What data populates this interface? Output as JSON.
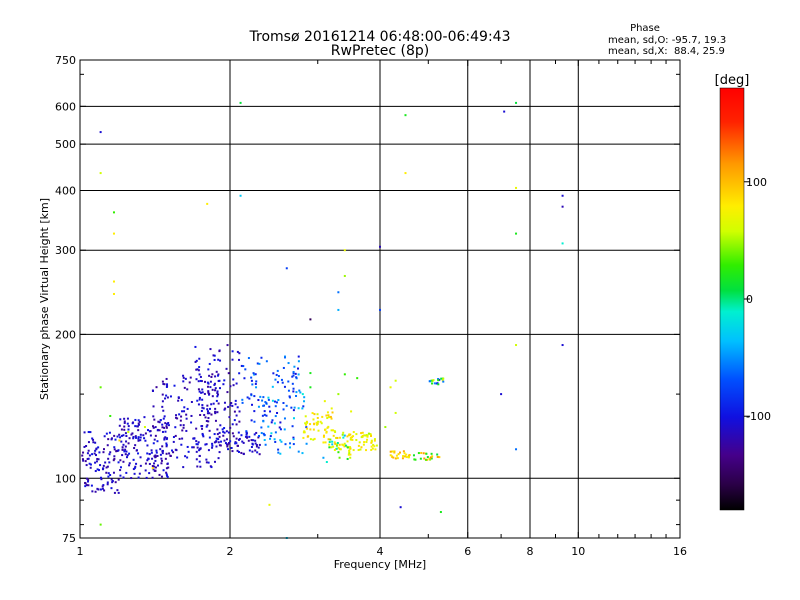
{
  "chart_data": {
    "type": "scatter",
    "title": "Tromsø 20161214 06:48:00-06:49:43",
    "subtitle": "RwPretec (8p)",
    "xlabel": "Frequency [MHz]",
    "ylabel": "Stationary phase Virtual Height [km]",
    "x_scale": "log",
    "y_scale": "log",
    "xlim": [
      1,
      16
    ],
    "ylim": [
      75,
      750
    ],
    "x_ticks": [
      1,
      2,
      4,
      6,
      8,
      10,
      16
    ],
    "y_ticks": [
      75,
      100,
      200,
      300,
      400,
      500,
      600,
      750
    ],
    "x_gridlines": [
      2,
      4,
      6,
      8,
      10
    ],
    "y_gridlines": [
      100,
      200,
      300,
      400,
      500,
      600
    ],
    "grid": true,
    "colorbar": {
      "label": "[deg]",
      "range": [
        -180,
        180
      ],
      "ticks": [
        -100,
        0,
        100
      ]
    },
    "phase_info": {
      "heading": "Phase",
      "line_o": "mean, sd,O: -95.7, 19.3",
      "line_x": "mean, sd,X:  88.4, 25.9"
    },
    "points": [
      [
        1.1,
        530,
        -110
      ],
      [
        1.1,
        435,
        60
      ],
      [
        1.17,
        360,
        30
      ],
      [
        1.17,
        325,
        80
      ],
      [
        1.17,
        258,
        80
      ],
      [
        1.17,
        243,
        80
      ],
      [
        1.8,
        375,
        80
      ],
      [
        2.1,
        610,
        10
      ],
      [
        2.1,
        390,
        -30
      ],
      [
        2.6,
        275,
        -80
      ],
      [
        2.9,
        215,
        -150
      ],
      [
        3.4,
        300,
        70
      ],
      [
        3.4,
        265,
        50
      ],
      [
        3.3,
        245,
        -60
      ],
      [
        3.3,
        225,
        -40
      ],
      [
        4.0,
        305,
        -120
      ],
      [
        4.0,
        225,
        -80
      ],
      [
        4.5,
        575,
        20
      ],
      [
        4.5,
        435,
        80
      ],
      [
        7.1,
        585,
        -110
      ],
      [
        7.5,
        610,
        10
      ],
      [
        7.5,
        405,
        70
      ],
      [
        7.5,
        325,
        20
      ],
      [
        9.3,
        390,
        -110
      ],
      [
        9.3,
        370,
        -120
      ],
      [
        9.3,
        310,
        -10
      ],
      [
        9.3,
        190,
        -110
      ],
      [
        7.5,
        190,
        60
      ],
      [
        7.5,
        115,
        -60
      ],
      [
        7.0,
        150,
        -110
      ],
      [
        5.3,
        85,
        20
      ],
      [
        4.4,
        87,
        -110
      ],
      [
        2.4,
        88,
        70
      ],
      [
        2.6,
        75,
        -30
      ],
      [
        1.1,
        80,
        40
      ],
      [
        4.3,
        160,
        60
      ],
      [
        4.2,
        155,
        70
      ],
      [
        4.3,
        137,
        60
      ],
      [
        4.1,
        128,
        50
      ],
      [
        3.8,
        124,
        50
      ],
      [
        3.5,
        138,
        70
      ],
      [
        3.2,
        140,
        70
      ],
      [
        3.1,
        145,
        70
      ],
      [
        2.8,
        150,
        -10
      ],
      [
        2.9,
        155,
        20
      ],
      [
        3.3,
        150,
        50
      ],
      [
        3.4,
        165,
        30
      ],
      [
        3.6,
        162,
        30
      ],
      [
        2.9,
        166,
        20
      ],
      [
        1.1,
        155,
        40
      ],
      [
        1.15,
        135,
        30
      ],
      [
        1.25,
        125,
        60
      ],
      [
        1.35,
        128,
        60
      ],
      [
        1.2,
        120,
        90
      ],
      [
        1.4,
        105,
        90
      ]
    ],
    "clusters": [
      {
        "x": [
          1.0,
          1.2
        ],
        "y": [
          93,
          125
        ],
        "n": 110,
        "phase": [
          -130,
          -100
        ]
      },
      {
        "x": [
          1.2,
          1.5
        ],
        "y": [
          100,
          135
        ],
        "n": 160,
        "phase": [
          -130,
          -100
        ]
      },
      {
        "x": [
          1.4,
          1.9
        ],
        "y": [
          105,
          165
        ],
        "n": 170,
        "phase": [
          -130,
          -100
        ]
      },
      {
        "x": [
          1.7,
          2.1
        ],
        "y": [
          115,
          190
        ],
        "n": 120,
        "phase": [
          -130,
          -100
        ]
      },
      {
        "x": [
          1.9,
          2.3
        ],
        "y": [
          112,
          125
        ],
        "n": 60,
        "phase": [
          -130,
          -100
        ]
      },
      {
        "x": [
          2.1,
          2.75
        ],
        "y": [
          120,
          180
        ],
        "n": 90,
        "phase": [
          -110,
          -40
        ]
      },
      {
        "x": [
          2.3,
          2.85
        ],
        "y": [
          112,
          165
        ],
        "n": 55,
        "phase": [
          -90,
          -20
        ]
      },
      {
        "x": [
          2.8,
          3.25
        ],
        "y": [
          118,
          138
        ],
        "n": 55,
        "phase": [
          60,
          100
        ]
      },
      {
        "x": [
          3.15,
          3.5
        ],
        "y": [
          112,
          125
        ],
        "n": 35,
        "phase": [
          60,
          100
        ]
      },
      {
        "x": [
          3.45,
          3.95
        ],
        "y": [
          114,
          125
        ],
        "n": 45,
        "phase": [
          60,
          95
        ]
      },
      {
        "x": [
          3.0,
          3.5
        ],
        "y": [
          108,
          125
        ],
        "n": 20,
        "phase": [
          -60,
          60
        ]
      },
      {
        "x": [
          4.2,
          4.6
        ],
        "y": [
          110,
          114
        ],
        "n": 25,
        "phase": [
          70,
          110
        ]
      },
      {
        "x": [
          4.65,
          5.3
        ],
        "y": [
          109,
          113
        ],
        "n": 22,
        "phase": [
          10,
          120
        ]
      },
      {
        "x": [
          5.0,
          5.4
        ],
        "y": [
          157,
          162
        ],
        "n": 18,
        "phase": [
          -110,
          80
        ]
      }
    ]
  }
}
